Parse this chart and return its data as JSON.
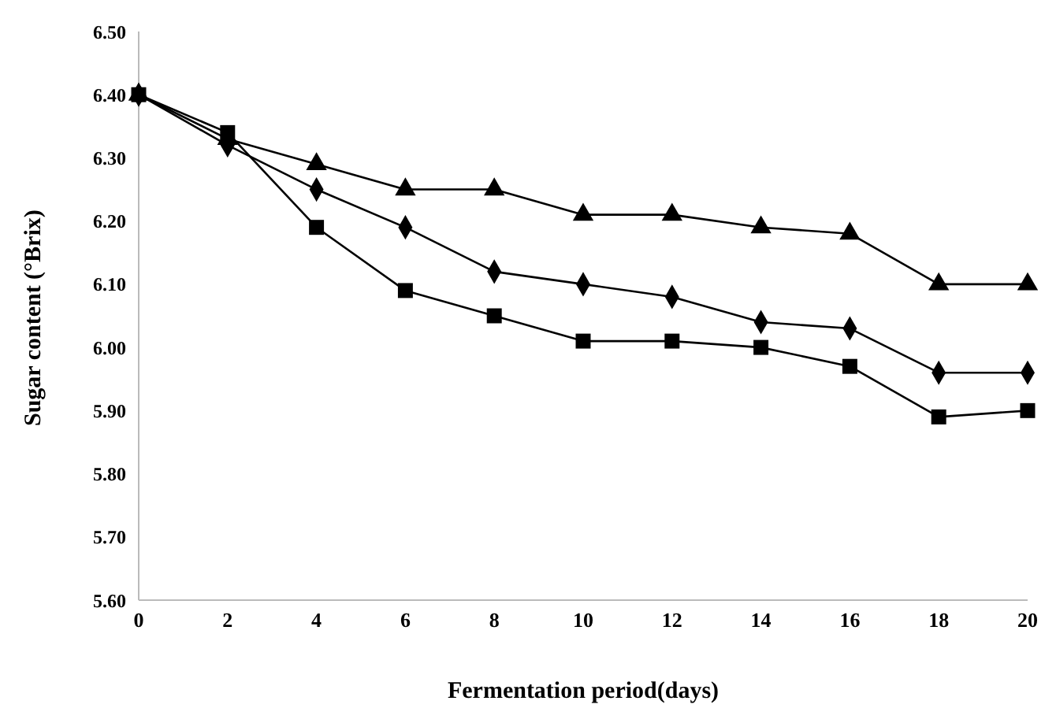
{
  "chart_data": {
    "type": "line",
    "xlabel": "Fermentation period(days)",
    "ylabel": "Sugar content (°Brix)",
    "categories": [
      "0",
      "2",
      "4",
      "6",
      "8",
      "10",
      "12",
      "14",
      "16",
      "18",
      "20"
    ],
    "series": [
      {
        "color": "#000000",
        "marker": "triangle",
        "values": [
          6.4,
          6.33,
          6.29,
          6.25,
          6.25,
          6.21,
          6.21,
          6.19,
          6.18,
          6.1,
          6.1
        ]
      },
      {
        "color": "#000000",
        "marker": "diamond",
        "values": [
          6.4,
          6.32,
          6.25,
          6.19,
          6.12,
          6.1,
          6.08,
          6.04,
          6.03,
          5.96,
          5.96
        ]
      },
      {
        "color": "#000000",
        "marker": "square",
        "values": [
          6.4,
          6.34,
          6.19,
          6.09,
          6.05,
          6.01,
          6.01,
          6.0,
          5.97,
          5.89,
          5.9
        ]
      }
    ],
    "ylim": [
      5.6,
      6.5
    ],
    "yticks": [
      {
        "value": 5.6,
        "label": "5.60"
      },
      {
        "value": 5.7,
        "label": "5.70"
      },
      {
        "value": 5.8,
        "label": "5.80"
      },
      {
        "value": 5.9,
        "label": "5.90"
      },
      {
        "value": 6.0,
        "label": "6.00"
      },
      {
        "value": 6.1,
        "label": "6.10"
      },
      {
        "value": 6.2,
        "label": "6.20"
      },
      {
        "value": 6.3,
        "label": "6.30"
      },
      {
        "value": 6.4,
        "label": "6.40"
      },
      {
        "value": 6.5,
        "label": "6.50"
      }
    ],
    "grid": false,
    "legend": false,
    "line_style": "solid"
  }
}
